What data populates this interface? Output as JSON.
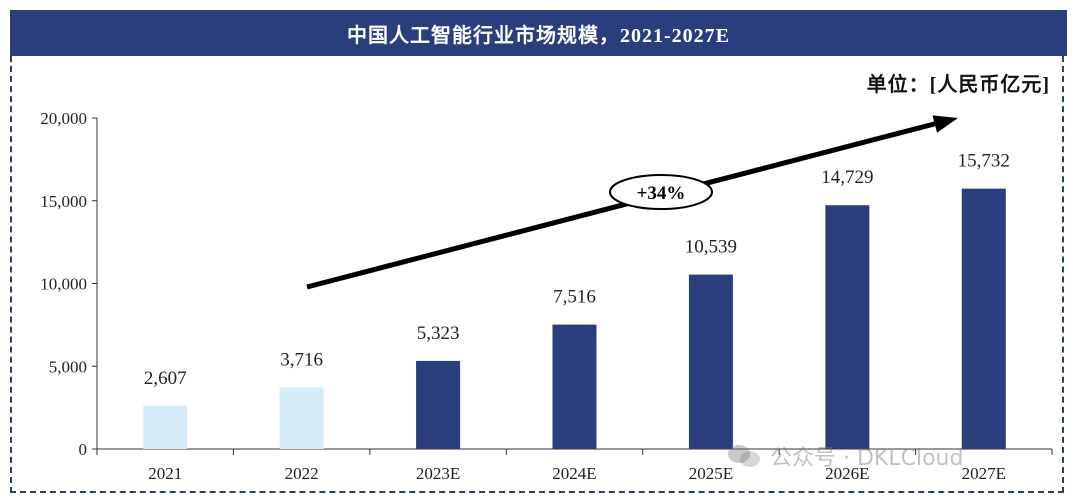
{
  "header": {
    "title": "中国人工智能行业市场规模，2021-2027E"
  },
  "unit_label": "单位：[人民币亿元]",
  "annotation": {
    "growth_label": "+34%"
  },
  "watermark": {
    "icon": "wechat-icon",
    "text": "公众号 · DKLCloud"
  },
  "colors": {
    "title_bg": "#2a3e7d",
    "actual_bar": "#d6ebf8",
    "forecast_bar": "#2a3e7d"
  },
  "chart_data": {
    "type": "bar",
    "title": "中国人工智能行业市场规模，2021-2027E",
    "categories": [
      "2021",
      "2022",
      "2023E",
      "2024E",
      "2025E",
      "2026E",
      "2027E"
    ],
    "values": [
      2607,
      3716,
      5323,
      7516,
      10539,
      14729,
      15732
    ],
    "value_labels": [
      "2,607",
      "3,716",
      "5,323",
      "7,516",
      "10,539",
      "14,729",
      "15,732"
    ],
    "forecast": [
      false,
      false,
      true,
      true,
      true,
      true,
      true
    ],
    "ylim": [
      0,
      20000
    ],
    "yticks": [
      0,
      5000,
      10000,
      15000,
      20000
    ],
    "ytick_labels": [
      "0",
      "5,000",
      "10,000",
      "15,000",
      "20,000"
    ],
    "xlabel": "",
    "ylabel": "",
    "grid": false
  }
}
